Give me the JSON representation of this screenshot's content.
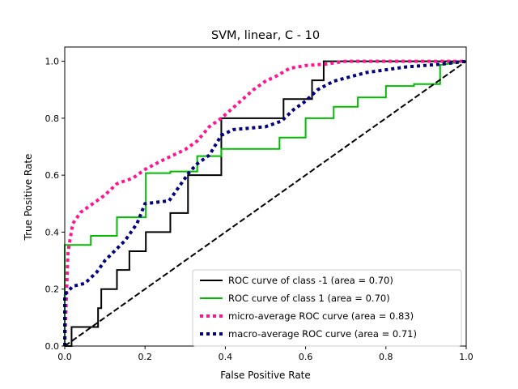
{
  "chart_data": {
    "type": "line",
    "title": "SVM, linear, C - 10",
    "xlabel": "False Positive Rate",
    "ylabel": "True Positive Rate",
    "xlim": [
      0,
      1
    ],
    "ylim": [
      0,
      1.05
    ],
    "xticks": [
      "0.0",
      "0.2",
      "0.4",
      "0.6",
      "0.8",
      "1.0"
    ],
    "yticks": [
      "0.0",
      "0.2",
      "0.4",
      "0.6",
      "0.8",
      "1.0"
    ],
    "grid": false,
    "legend_position": "lower-right",
    "series": [
      {
        "name": "ROC curve of class -1 (area = 0.70)",
        "color": "#000000",
        "style": "solid",
        "x": [
          0,
          0.017,
          0.017,
          0.017,
          0.083,
          0.083,
          0.091,
          0.091,
          0.13,
          0.13,
          0.161,
          0.161,
          0.202,
          0.202,
          0.263,
          0.263,
          0.307,
          0.307,
          0.39,
          0.39,
          0.545,
          0.545,
          0.616,
          0.616,
          0.645,
          0.645,
          1.0
        ],
        "y": [
          0,
          0,
          0.067,
          0.067,
          0.067,
          0.133,
          0.133,
          0.2,
          0.2,
          0.267,
          0.267,
          0.333,
          0.333,
          0.4,
          0.4,
          0.467,
          0.467,
          0.6,
          0.6,
          0.8,
          0.8,
          0.867,
          0.867,
          0.933,
          0.933,
          1.0,
          1.0
        ]
      },
      {
        "name": "ROC curve of class 1 (area = 0.70)",
        "color": "#00bb00",
        "style": "solid",
        "x": [
          0,
          0,
          0.065,
          0.065,
          0.13,
          0.13,
          0.202,
          0.202,
          0.263,
          0.263,
          0.33,
          0.33,
          0.39,
          0.39,
          0.535,
          0.535,
          0.6,
          0.6,
          0.67,
          0.67,
          0.73,
          0.73,
          0.8,
          0.8,
          0.87,
          0.87,
          0.935,
          0.935,
          1.0
        ],
        "y": [
          0,
          0.355,
          0.355,
          0.387,
          0.387,
          0.452,
          0.452,
          0.607,
          0.607,
          0.613,
          0.613,
          0.667,
          0.667,
          0.692,
          0.692,
          0.732,
          0.732,
          0.8,
          0.8,
          0.84,
          0.84,
          0.873,
          0.873,
          0.913,
          0.913,
          0.92,
          0.92,
          0.987,
          1.0
        ]
      },
      {
        "name": "micro-average ROC curve (area = 0.83)",
        "color": "#ff1493",
        "style": "dotted",
        "x": [
          0,
          0.008,
          0.02,
          0.04,
          0.07,
          0.1,
          0.13,
          0.17,
          0.2,
          0.24,
          0.27,
          0.3,
          0.33,
          0.36,
          0.39,
          0.43,
          0.47,
          0.5,
          0.53,
          0.56,
          0.6,
          0.65,
          0.7,
          0.8,
          0.9,
          1.0
        ],
        "y": [
          0,
          0.33,
          0.43,
          0.47,
          0.5,
          0.53,
          0.57,
          0.59,
          0.62,
          0.65,
          0.67,
          0.69,
          0.72,
          0.77,
          0.8,
          0.85,
          0.9,
          0.93,
          0.95,
          0.975,
          0.985,
          0.99,
          1.0,
          1.0,
          1.0,
          1.0
        ]
      },
      {
        "name": "macro-average ROC curve (area = 0.71)",
        "color": "#000080",
        "style": "dotted",
        "x": [
          0,
          0,
          0.02,
          0.05,
          0.08,
          0.1,
          0.15,
          0.18,
          0.2,
          0.26,
          0.3,
          0.31,
          0.33,
          0.36,
          0.39,
          0.42,
          0.5,
          0.54,
          0.57,
          0.6,
          0.63,
          0.67,
          0.75,
          0.85,
          0.94,
          1.0
        ],
        "y": [
          0,
          0.18,
          0.21,
          0.22,
          0.26,
          0.3,
          0.37,
          0.43,
          0.5,
          0.51,
          0.59,
          0.61,
          0.64,
          0.67,
          0.74,
          0.76,
          0.77,
          0.79,
          0.83,
          0.86,
          0.9,
          0.93,
          0.96,
          0.98,
          0.99,
          1.0
        ]
      },
      {
        "name": "",
        "color": "#000000",
        "style": "dashed",
        "x": [
          0,
          1
        ],
        "y": [
          0,
          1
        ]
      }
    ]
  }
}
